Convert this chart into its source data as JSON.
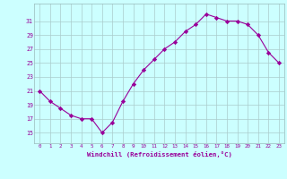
{
  "x": [
    0,
    1,
    2,
    3,
    4,
    5,
    6,
    7,
    8,
    9,
    10,
    11,
    12,
    13,
    14,
    15,
    16,
    17,
    18,
    19,
    20,
    21,
    22,
    23
  ],
  "y": [
    21,
    19.5,
    18.5,
    17.5,
    17,
    17,
    15,
    16.5,
    19.5,
    22,
    24,
    25.5,
    27,
    28,
    29.5,
    30.5,
    32,
    31.5,
    31,
    31,
    30.5,
    29,
    26.5,
    25
  ],
  "line_color": "#990099",
  "marker": "D",
  "marker_size": 2.2,
  "bg_color": "#ccffff",
  "grid_color": "#aacccc",
  "xlabel": "Windchill (Refroidissement éolien,°C)",
  "xlabel_color": "#990099",
  "tick_color": "#990099",
  "yticks": [
    15,
    17,
    19,
    21,
    23,
    25,
    27,
    29,
    31
  ],
  "ylim": [
    13.5,
    33.5
  ],
  "xlim": [
    -0.5,
    23.5
  ],
  "xticks": [
    0,
    1,
    2,
    3,
    4,
    5,
    6,
    7,
    8,
    9,
    10,
    11,
    12,
    13,
    14,
    15,
    16,
    17,
    18,
    19,
    20,
    21,
    22,
    23
  ]
}
